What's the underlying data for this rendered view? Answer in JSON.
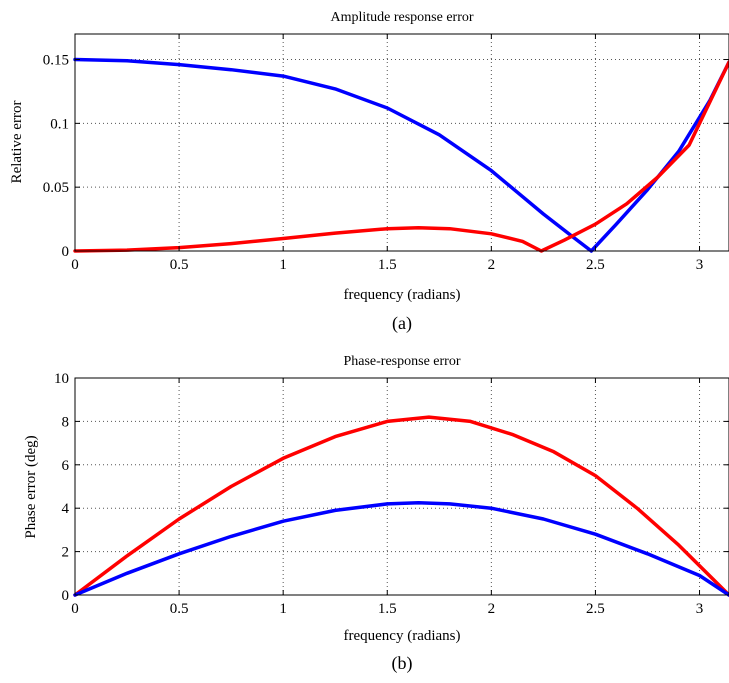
{
  "chart_data": [
    {
      "type": "line",
      "title": "Amplitude response error",
      "xlabel": "frequency (radians)",
      "ylabel": "Relative error",
      "caption": "(a)",
      "xlim": [
        0,
        3.1416
      ],
      "ylim": [
        0,
        0.17
      ],
      "xticks": [
        "0",
        "0.5",
        "1",
        "1.5",
        "2",
        "2.5",
        "3"
      ],
      "xtick_values": [
        0,
        0.5,
        1,
        1.5,
        2,
        2.5,
        3
      ],
      "yticks": [
        "0",
        "0.05",
        "0.1",
        "0.15"
      ],
      "ytick_values": [
        0,
        0.05,
        0.1,
        0.15
      ],
      "grid": true,
      "series": [
        {
          "color": "#0000ff",
          "x": [
            0,
            0.25,
            0.5,
            0.75,
            1.0,
            1.25,
            1.5,
            1.75,
            2.0,
            2.25,
            2.4,
            2.48,
            2.6,
            2.75,
            2.9,
            3.05,
            3.1416
          ],
          "y": [
            0.15,
            0.149,
            0.146,
            0.142,
            0.137,
            0.127,
            0.112,
            0.091,
            0.063,
            0.029,
            0.01,
            0.0,
            0.021,
            0.048,
            0.078,
            0.118,
            0.148
          ]
        },
        {
          "color": "#ff0000",
          "x": [
            0,
            0.25,
            0.5,
            0.75,
            1.0,
            1.25,
            1.5,
            1.65,
            1.8,
            2.0,
            2.15,
            2.24,
            2.35,
            2.5,
            2.65,
            2.8,
            2.95,
            3.1416
          ],
          "y": [
            0.0,
            0.0007,
            0.0027,
            0.0058,
            0.0098,
            0.014,
            0.0175,
            0.0182,
            0.0175,
            0.0135,
            0.0075,
            0.0,
            0.0085,
            0.021,
            0.037,
            0.058,
            0.083,
            0.148
          ]
        }
      ]
    },
    {
      "type": "line",
      "title": "Phase-response error",
      "xlabel": "frequency (radians)",
      "ylabel": "Phase error (deg)",
      "caption": "(b)",
      "xlim": [
        0,
        3.1416
      ],
      "ylim": [
        0,
        10
      ],
      "xticks": [
        "0",
        "0.5",
        "1",
        "1.5",
        "2",
        "2.5",
        "3"
      ],
      "xtick_values": [
        0,
        0.5,
        1,
        1.5,
        2,
        2.5,
        3
      ],
      "yticks": [
        "0",
        "2",
        "4",
        "6",
        "8",
        "10"
      ],
      "ytick_values": [
        0,
        2,
        4,
        6,
        8,
        10
      ],
      "grid": true,
      "series": [
        {
          "color": "#ff0000",
          "x": [
            0,
            0.25,
            0.5,
            0.75,
            1.0,
            1.25,
            1.5,
            1.7,
            1.9,
            2.1,
            2.3,
            2.5,
            2.7,
            2.9,
            3.1416
          ],
          "y": [
            0.0,
            1.8,
            3.5,
            5.0,
            6.3,
            7.3,
            8.0,
            8.2,
            8.0,
            7.4,
            6.6,
            5.5,
            4.0,
            2.3,
            0.0
          ]
        },
        {
          "color": "#0000ff",
          "x": [
            0,
            0.25,
            0.5,
            0.75,
            1.0,
            1.25,
            1.5,
            1.65,
            1.8,
            2.0,
            2.25,
            2.5,
            2.75,
            3.0,
            3.1416
          ],
          "y": [
            0.0,
            1.0,
            1.9,
            2.7,
            3.4,
            3.9,
            4.2,
            4.25,
            4.2,
            4.0,
            3.5,
            2.8,
            1.9,
            0.9,
            0.0
          ]
        }
      ]
    }
  ]
}
